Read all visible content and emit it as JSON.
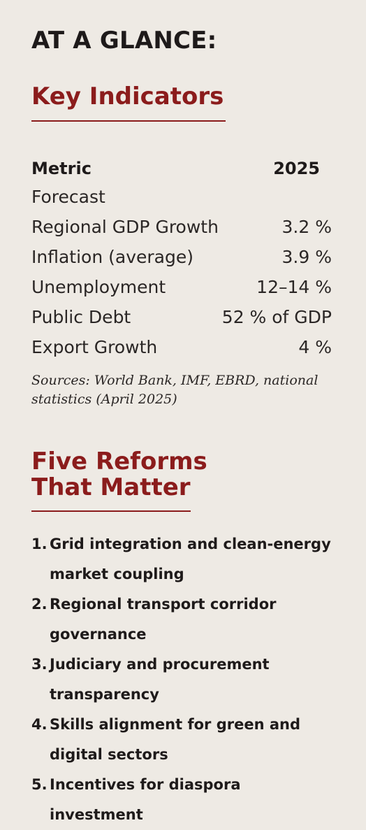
{
  "kicker": "AT A GLANCE:",
  "indicators": {
    "title": "Key Indicators",
    "header": {
      "metric": "Metric",
      "year": "2025"
    },
    "rows": [
      {
        "label": "Forecast",
        "value": ""
      },
      {
        "label": "Regional GDP Growth",
        "value": "3.2 %"
      },
      {
        "label": "Inflation (average)",
        "value": "3.9 %"
      },
      {
        "label": "Unemployment",
        "value": "12–14 %"
      },
      {
        "label": "Public Debt",
        "value": "52 % of GDP"
      },
      {
        "label": "Export Growth",
        "value": "4 %"
      }
    ],
    "sources": "Sources: World Bank, IMF, EBRD, national statistics (April 2025)"
  },
  "reforms": {
    "title_line1": "Five Reforms",
    "title_line2": "That Matter",
    "items": [
      {
        "num": "1.",
        "text": "Grid integration and clean-energy market coupling"
      },
      {
        "num": "2.",
        "text": "Regional transport corridor governance"
      },
      {
        "num": "3.",
        "text": "Judiciary and procurement transparency"
      },
      {
        "num": "4.",
        "text": "Skills alignment for green and digital sectors"
      },
      {
        "num": "5.",
        "text": "Incentives for diaspora investment"
      }
    ]
  },
  "colors": {
    "accent": "#8b1c1c",
    "background": "#eeeae4",
    "text": "#1e1a1a"
  }
}
